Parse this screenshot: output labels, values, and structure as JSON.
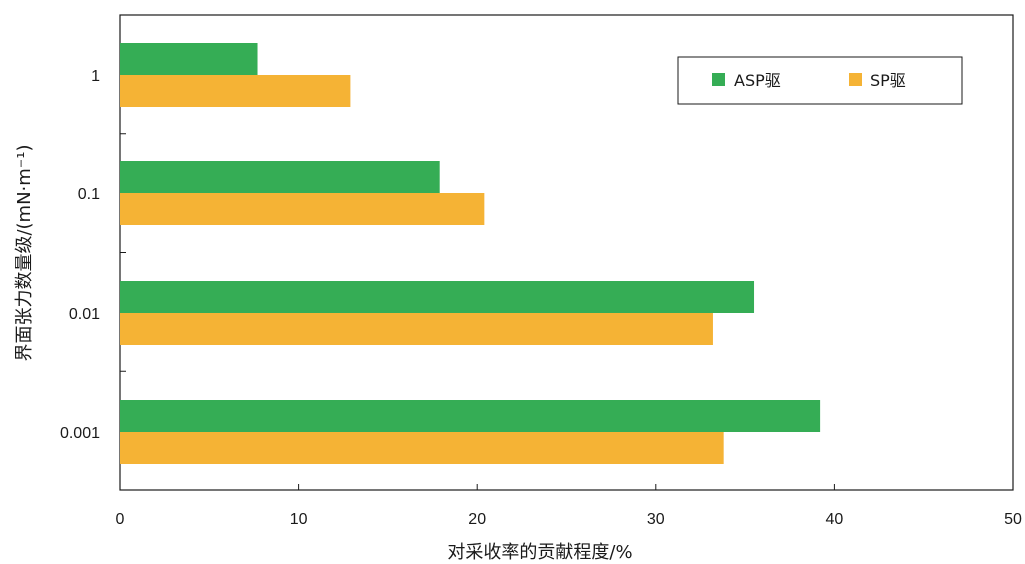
{
  "chart_data": {
    "type": "bar",
    "orientation": "horizontal",
    "categories": [
      "1",
      "0.1",
      "0.01",
      "0.001"
    ],
    "series": [
      {
        "name": "ASP驱",
        "color": "#35ad55",
        "values": [
          7.7,
          17.9,
          35.5,
          39.2
        ]
      },
      {
        "name": "SP驱",
        "color": "#f5b335",
        "values": [
          12.9,
          20.4,
          33.2,
          33.8
        ]
      }
    ],
    "xlabel": "对采收率的贡献程度/%",
    "ylabel": "界面张力数量级/(mN·m⁻¹)",
    "xlim": [
      0,
      50
    ],
    "xticks": [
      "0",
      "10",
      "20",
      "30",
      "40",
      "50"
    ],
    "grid": false,
    "legend_position": "top-right"
  }
}
